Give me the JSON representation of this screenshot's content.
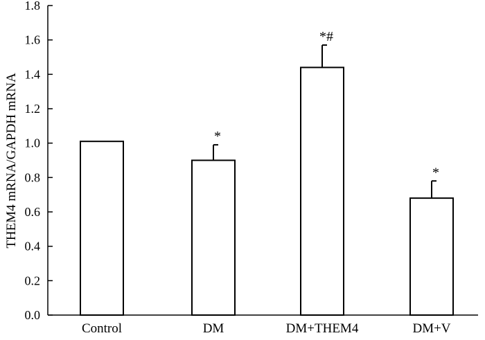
{
  "chart_data": {
    "type": "bar",
    "categories": [
      "Control",
      "DM",
      "DM+THEM4",
      "DM+V"
    ],
    "values": [
      1.01,
      0.9,
      1.44,
      0.68
    ],
    "errors": [
      0,
      0.09,
      0.13,
      0.1
    ],
    "annotations": [
      "",
      "*",
      "*#",
      "*"
    ],
    "title": "",
    "xlabel": "",
    "ylabel": "THEM4 mRNA/GAPDH mRNA",
    "ylim": [
      0,
      1.8
    ],
    "yticks": [
      0.0,
      0.2,
      0.4,
      0.6,
      0.8,
      1.0,
      1.2,
      1.4,
      1.6,
      1.8
    ],
    "ytick_labels": [
      "0.0",
      "0.2",
      "0.4",
      "0.6",
      "0.8",
      "1.0",
      "1.2",
      "1.4",
      "1.6",
      "1.8"
    ],
    "grid": false,
    "bar_fill": "#ffffff",
    "bar_stroke": "#000000"
  }
}
